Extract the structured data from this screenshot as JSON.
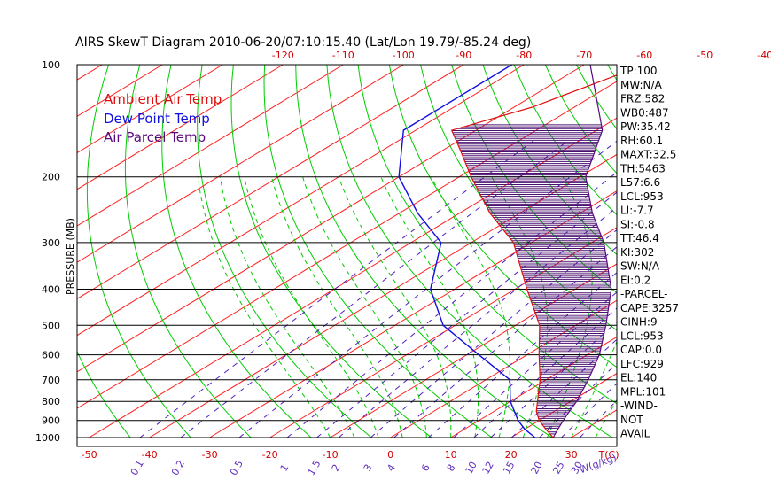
{
  "chart_data": {
    "type": "skew-t",
    "title": "AIRS SkewT Diagram 2010-06-20/07:10:15.40 (Lat/Lon 19.79/-85.24 deg)",
    "ylabel": "PRESSURE (MB)",
    "pressure_ticks": [
      100,
      200,
      300,
      400,
      500,
      600,
      700,
      800,
      900,
      1000
    ],
    "bottom_temp_ticks": [
      -50,
      -40,
      -30,
      -20,
      -10,
      0,
      10,
      20,
      30
    ],
    "bottom_temp_unit": "T(C)",
    "top_temp_ticks": [
      -120,
      -110,
      -100,
      -90,
      -80,
      -70,
      -60,
      -50,
      -40
    ],
    "mixing_ratio_ticks": [
      "0.1",
      "0.2",
      "0.5",
      "1",
      "1.5",
      "2",
      "3",
      "4",
      "6",
      "8",
      "10",
      "12",
      "15",
      "20",
      "25",
      "30"
    ],
    "mixing_ratio_unit": "W(g/kg)",
    "series": [
      {
        "name": "Ambient Air Temp",
        "color": "#e01010",
        "points": [
          [
            100,
            -60
          ],
          [
            130,
            -67
          ],
          [
            150,
            -74
          ],
          [
            170,
            -67
          ],
          [
            200,
            -58
          ],
          [
            250,
            -45
          ],
          [
            300,
            -33
          ],
          [
            400,
            -18
          ],
          [
            500,
            -6
          ],
          [
            600,
            2
          ],
          [
            700,
            9
          ],
          [
            800,
            14.5
          ],
          [
            850,
            17
          ],
          [
            900,
            20
          ],
          [
            950,
            23.5
          ],
          [
            1000,
            27
          ]
        ]
      },
      {
        "name": "Dew Point Temp",
        "color": "#1010e0",
        "points": [
          [
            100,
            -82
          ],
          [
            150,
            -82
          ],
          [
            200,
            -70
          ],
          [
            250,
            -57
          ],
          [
            300,
            -45
          ],
          [
            400,
            -34
          ],
          [
            500,
            -22
          ],
          [
            600,
            -8
          ],
          [
            700,
            4
          ],
          [
            800,
            10
          ],
          [
            900,
            16.5
          ],
          [
            950,
            20
          ],
          [
            1000,
            24
          ]
        ]
      },
      {
        "name": "Air Parcel Temp",
        "color": "#5a0a80",
        "points": [
          [
            100,
            -69
          ],
          [
            120,
            -60
          ],
          [
            150,
            -49
          ],
          [
            200,
            -39
          ],
          [
            250,
            -28
          ],
          [
            300,
            -18
          ],
          [
            400,
            -4
          ],
          [
            500,
            5
          ],
          [
            600,
            12
          ],
          [
            700,
            17
          ],
          [
            800,
            21
          ],
          [
            850,
            22.5
          ],
          [
            900,
            24
          ],
          [
            950,
            25.5
          ],
          [
            1000,
            27
          ]
        ]
      }
    ],
    "indices": [
      "TP:100",
      "MW:N/A",
      "FRZ:582",
      "WB0:487",
      "PW:35.42",
      "RH:60.1",
      "MAXT:32.5",
      "TH:5463",
      "L57:6.6",
      "LCL:953",
      "LI:-7.7",
      "SI:-0.8",
      "TT:46.4",
      "KI:302",
      "SW:N/A",
      "EI:0.2",
      "-PARCEL-",
      "CAPE:3257",
      "CINH:9",
      "LCL:953",
      "CAP:0.0",
      "LFC:929",
      "EL:140",
      "MPL:101",
      "-WIND-",
      "NOT",
      "AVAIL"
    ],
    "colors": {
      "isotherm": "#ff2020",
      "dry_adiabat": "#00cc00",
      "moist_adiabat": "#00cc00",
      "mixing_ratio": "#5020c0",
      "isobar": "#000000",
      "temp_tick": "#d00000",
      "mixing_tick": "#6030c0"
    }
  }
}
